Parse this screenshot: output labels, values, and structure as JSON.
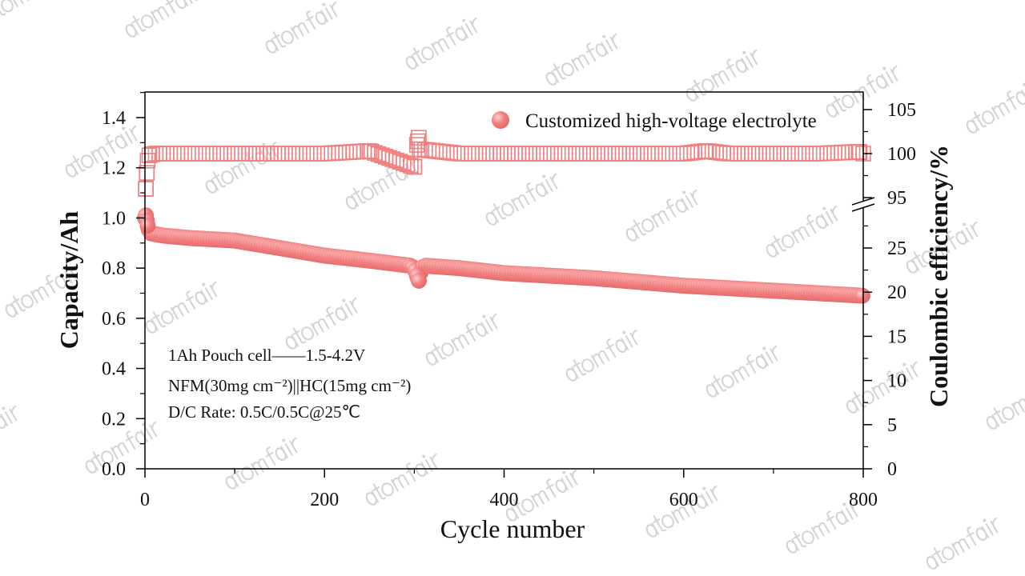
{
  "watermark": "atomfair",
  "colors": {
    "marker": "#f28080",
    "marker_dark": "#e86a6a",
    "axis": "#000000"
  },
  "chart_data": {
    "type": "scatter",
    "title": "",
    "xlabel": "Cycle number",
    "ylabel": "Capacity/Ah",
    "y2label": "Coulombic efficiency/%",
    "xlim": [
      0,
      800
    ],
    "ylim": [
      0,
      1.4
    ],
    "y2lim_lower": [
      0,
      25
    ],
    "y2lim_upper": [
      95,
      105
    ],
    "xticks": [
      "0",
      "200",
      "400",
      "600",
      "800"
    ],
    "yticks": [
      "0.0",
      "0.2",
      "0.4",
      "0.6",
      "0.8",
      "1.0",
      "1.2",
      "1.4"
    ],
    "y2ticks_lower": [
      "0",
      "5",
      "10",
      "15",
      "20",
      "25"
    ],
    "y2ticks_upper": [
      "95",
      "100",
      "105"
    ],
    "legend": {
      "label": "Customized high-voltage electrolyte",
      "placement": "top-right"
    },
    "annotations": [
      "1Ah Pouch cell——1.5-4.2V",
      "NFM(30mg cm⁻²)||HC(15mg cm⁻²)",
      "D/C Rate:  0.5C/0.5C@25℃"
    ],
    "series": [
      {
        "name": "Capacity",
        "axis": "left",
        "marker": "filled-circle",
        "x": [
          0,
          1,
          3,
          5,
          20,
          50,
          100,
          150,
          200,
          250,
          295,
          300,
          303,
          305,
          308,
          312,
          350,
          400,
          450,
          500,
          550,
          600,
          650,
          700,
          750,
          800
        ],
        "y": [
          1.0,
          1.01,
          0.97,
          0.94,
          0.93,
          0.92,
          0.91,
          0.88,
          0.85,
          0.83,
          0.81,
          0.8,
          0.77,
          0.75,
          0.8,
          0.81,
          0.8,
          0.78,
          0.77,
          0.76,
          0.745,
          0.73,
          0.72,
          0.71,
          0.7,
          0.69
        ]
      },
      {
        "name": "Coulombic efficiency",
        "axis": "right",
        "marker": "open-square",
        "x": [
          1,
          2,
          3,
          5,
          10,
          50,
          100,
          150,
          200,
          250,
          300,
          303,
          305,
          306,
          350,
          400,
          450,
          500,
          550,
          600,
          625,
          650,
          700,
          750,
          795,
          800
        ],
        "y": [
          96.0,
          97.8,
          99.2,
          99.8,
          100.0,
          100.0,
          100.0,
          100.0,
          100.0,
          100.3,
          98.5,
          101.0,
          101.8,
          100.5,
          100.0,
          100.0,
          100.0,
          100.0,
          100.0,
          100.0,
          100.3,
          100.0,
          100.0,
          100.0,
          100.2,
          100.0
        ]
      }
    ]
  }
}
